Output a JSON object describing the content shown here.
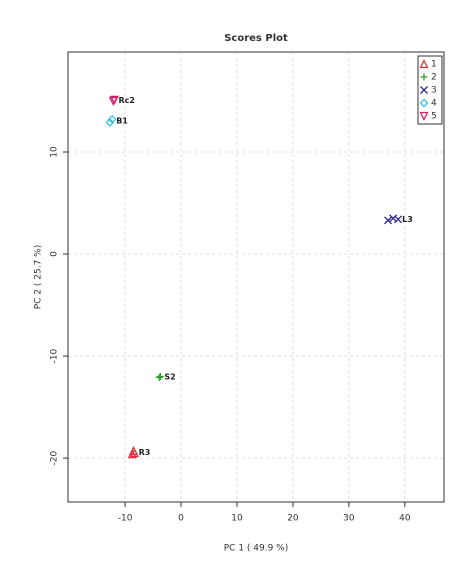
{
  "chart_data": {
    "type": "scatter",
    "title": "Scores Plot",
    "x_label": "PC 1 ( 49.9 %)",
    "y_label": "PC 2 ( 25.7 %)",
    "xlim": [
      -20.2,
      47
    ],
    "ylim": [
      -24.3,
      19.8
    ],
    "xticks": [
      -10,
      0,
      10,
      20,
      30,
      40
    ],
    "yticks": [
      -20,
      -10,
      0,
      10
    ],
    "grid": true,
    "legend": "top-right",
    "series": [
      {
        "name": "1",
        "color": "#e0303a",
        "marker": "triangle",
        "label": "R3",
        "x": [
          -8.5,
          -8.3,
          -8.7
        ],
        "values": [
          -19.3,
          -19.5,
          -19.6
        ]
      },
      {
        "name": "2",
        "color": "#2ca02c",
        "marker": "plus",
        "label": "S2",
        "x": [
          -3.9,
          -3.7
        ],
        "values": [
          -12.1,
          -12.0
        ]
      },
      {
        "name": "3",
        "color": "#2b2b8a",
        "marker": "cross",
        "label": "L3",
        "x": [
          37,
          37.9,
          38.8
        ],
        "values": [
          3.3,
          3.5,
          3.4
        ]
      },
      {
        "name": "4",
        "color": "#3bbfe0",
        "marker": "diamond",
        "label": "B1",
        "x": [
          -12.7,
          -12.3
        ],
        "values": [
          12.9,
          13.2
        ]
      },
      {
        "name": "5",
        "color": "#d0206a",
        "marker": "down-triangle",
        "label": "Rc2",
        "x": [
          -12.1,
          -11.9
        ],
        "values": [
          15.0,
          15.1
        ]
      }
    ]
  }
}
